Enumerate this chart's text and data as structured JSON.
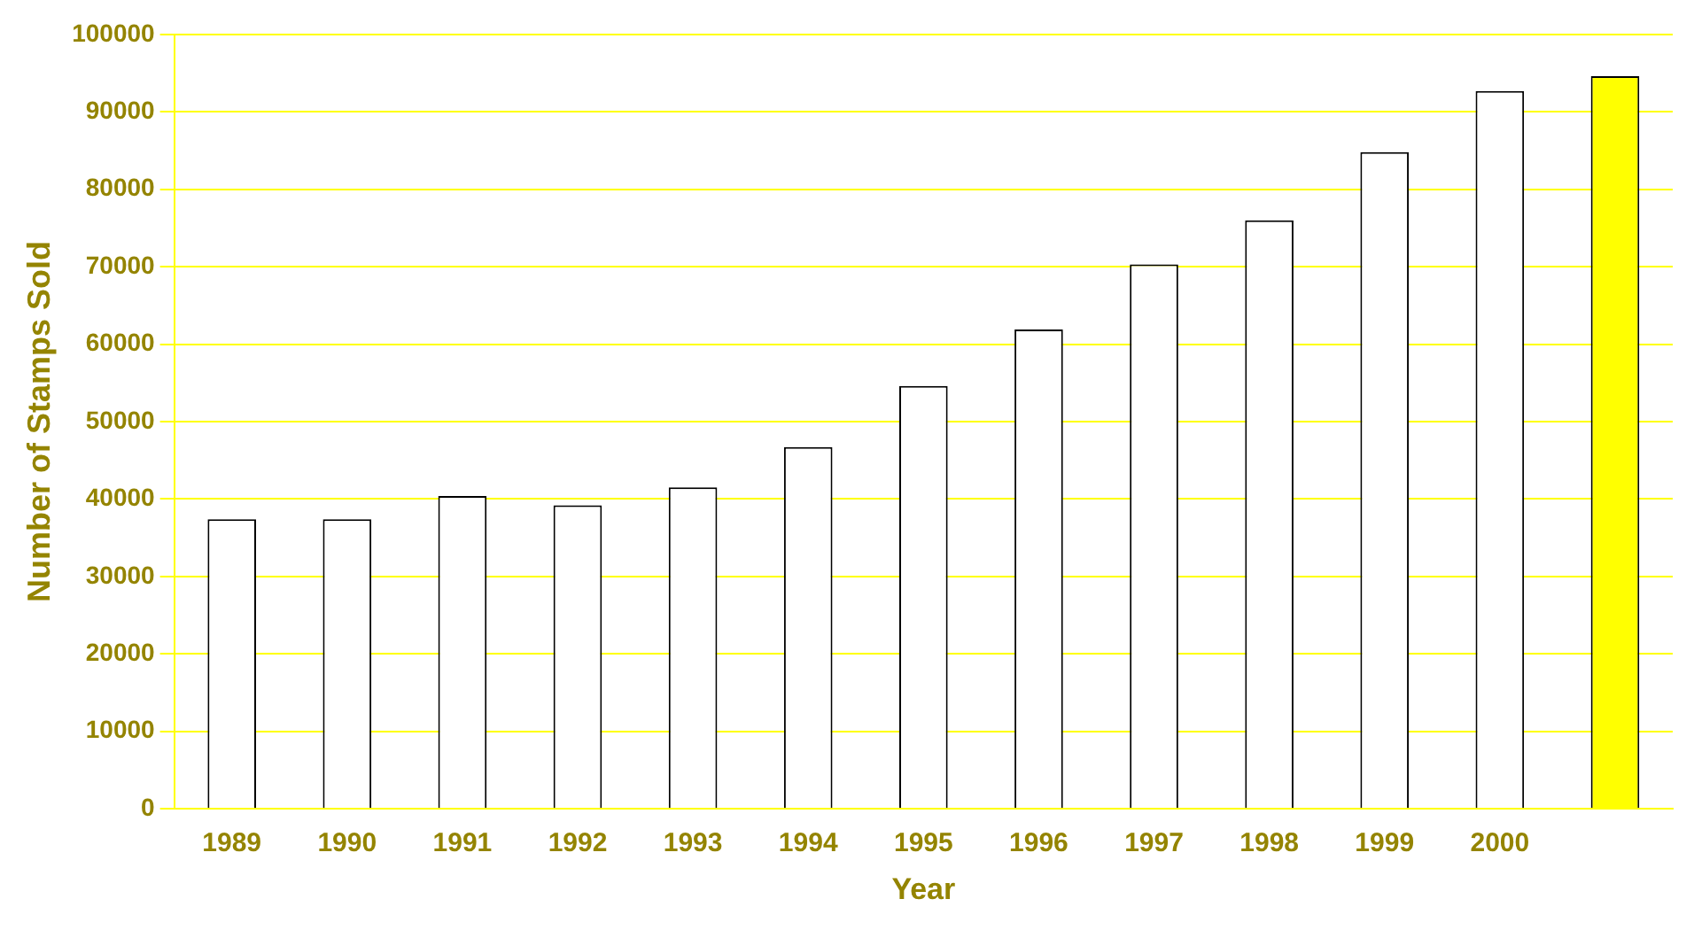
{
  "chart_data": {
    "type": "bar",
    "xlabel": "Year",
    "ylabel": "Number of Stamps Sold",
    "categories": [
      "1989",
      "1990",
      "1991",
      "1992",
      "1993",
      "1994",
      "1995",
      "1996",
      "1997",
      "1998",
      "1999",
      "2000",
      null
    ],
    "values": [
      37400,
      37400,
      40400,
      39200,
      41500,
      46700,
      54600,
      61900,
      70300,
      76000,
      84800,
      92700,
      94600
    ],
    "colors": [
      "#ffffff",
      "#ffffff",
      "#ffffff",
      "#ffffff",
      "#ffffff",
      "#ffffff",
      "#ffffff",
      "#ffffff",
      "#ffffff",
      "#ffffff",
      "#ffffff",
      "#ffffff",
      "#ffff00"
    ],
    "ylim": [
      0,
      100000
    ],
    "yticks": [
      0,
      10000,
      20000,
      30000,
      40000,
      50000,
      60000,
      70000,
      80000,
      90000,
      100000
    ],
    "grid": "y",
    "legend": false
  }
}
